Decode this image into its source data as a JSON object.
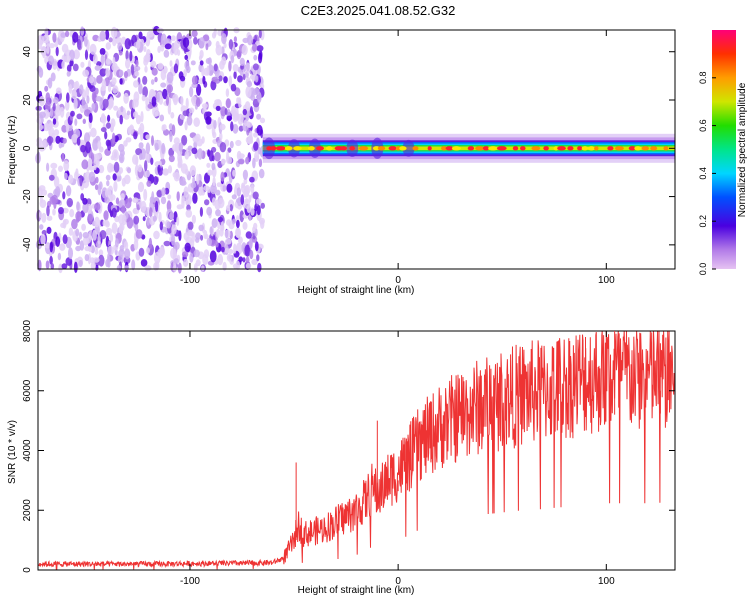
{
  "title": "C2E3.2025.041.08.52.G32",
  "chart_data": [
    {
      "type": "heatmap",
      "xlabel": "Height of straight line (km)",
      "ylabel": "Frequency (Hz)",
      "xlim": [
        -173,
        133
      ],
      "ylim": [
        -50,
        49
      ],
      "xticks": [
        -100,
        0,
        100
      ],
      "yticks": [
        -40,
        -20,
        0,
        20,
        40
      ],
      "colorbar": {
        "label": "Normalized spectral amplitude",
        "range": [
          0.0,
          1.0
        ],
        "ticks": [
          "0.0",
          "0.2",
          "0.4",
          "0.6",
          "0.8"
        ]
      },
      "description_values": {
        "noise_region_x": [
          -173,
          -65
        ],
        "signal_band_x": [
          -65,
          133
        ],
        "signal_band_center_frequency": 0,
        "signal_band_halfwidth_hz": 3
      }
    },
    {
      "type": "line",
      "xlabel": "Height of straight line (km)",
      "ylabel": "SNR (10 * v/v)",
      "xlim": [
        -173,
        133
      ],
      "ylim": [
        0,
        8000
      ],
      "xticks": [
        -100,
        0,
        100
      ],
      "yticks": [
        0,
        2000,
        4000,
        6000,
        8000
      ],
      "series": [
        {
          "color": "#ee3333",
          "x": [
            -173,
            -150,
            -120,
            -90,
            -70,
            -60,
            -55,
            -50,
            -48,
            -45,
            -40,
            -35,
            -30,
            -25,
            -20,
            -15,
            -12,
            -10,
            -5,
            0,
            5,
            10,
            15,
            20,
            30,
            40,
            50,
            60,
            70,
            80,
            90,
            100,
            110,
            120,
            133
          ],
          "y": [
            200,
            200,
            200,
            220,
            230,
            250,
            400,
            1000,
            1500,
            1200,
            1300,
            1400,
            1600,
            1800,
            2000,
            2400,
            2800,
            2500,
            3000,
            3300,
            3700,
            4200,
            4500,
            4800,
            5200,
            5500,
            5700,
            5900,
            6000,
            6200,
            6400,
            6500,
            6500,
            6500,
            6600
          ],
          "spikes": [
            [
              -49,
              3600
            ],
            [
              -10,
              5000
            ],
            [
              0,
              3000
            ],
            [
              4,
              4400
            ],
            [
              90,
              7800
            ],
            [
              104,
              8000
            ],
            [
              126,
              6000
            ]
          ]
        }
      ]
    }
  ]
}
